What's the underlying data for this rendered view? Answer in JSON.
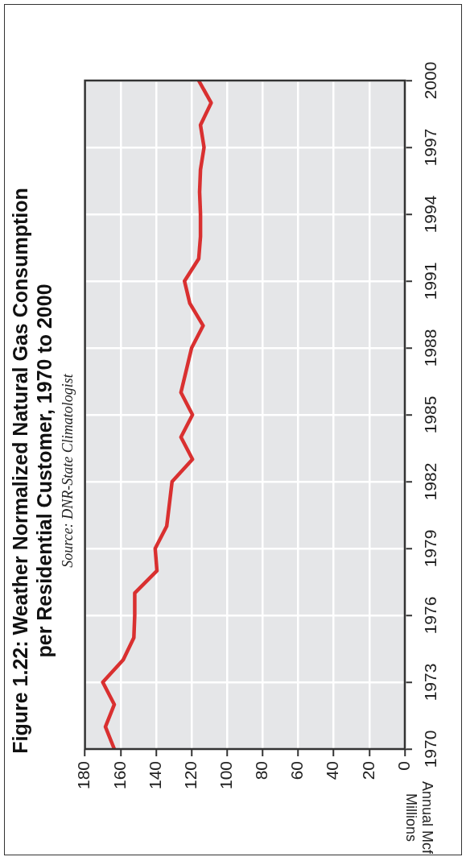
{
  "chart_data": {
    "type": "line",
    "orientation": "horizontal",
    "title": "Figure 1.22: Weather Normalized Natural Gas Consumption\nper Residential Customer, 1970 to 2000",
    "annotations": [
      "Source: DNR-State Climatologist"
    ],
    "ylabel": "Annual Mcf\nMillions",
    "categories": [
      "2000",
      null,
      null,
      "1997",
      null,
      null,
      "1994",
      null,
      null,
      "1991",
      null,
      null,
      "1988",
      null,
      null,
      "1985",
      null,
      null,
      "1982",
      null,
      null,
      "1979",
      null,
      null,
      "1976",
      null,
      null,
      "1973",
      null,
      null,
      "1970"
    ],
    "values": [
      116,
      109,
      115,
      113,
      115,
      115.5,
      115,
      115,
      116,
      124,
      121,
      113.5,
      120,
      123,
      126,
      119.5,
      126,
      119.5,
      131,
      132.5,
      134,
      140.5,
      139.5,
      152,
      152,
      152.5,
      158.5,
      170,
      163.5,
      168.5,
      163.5
    ],
    "color": "#d93030",
    "xlim": [
      180,
      0
    ],
    "xticks": [
      180,
      160,
      140,
      120,
      100,
      80,
      60,
      40,
      20,
      0
    ],
    "grid": true
  }
}
